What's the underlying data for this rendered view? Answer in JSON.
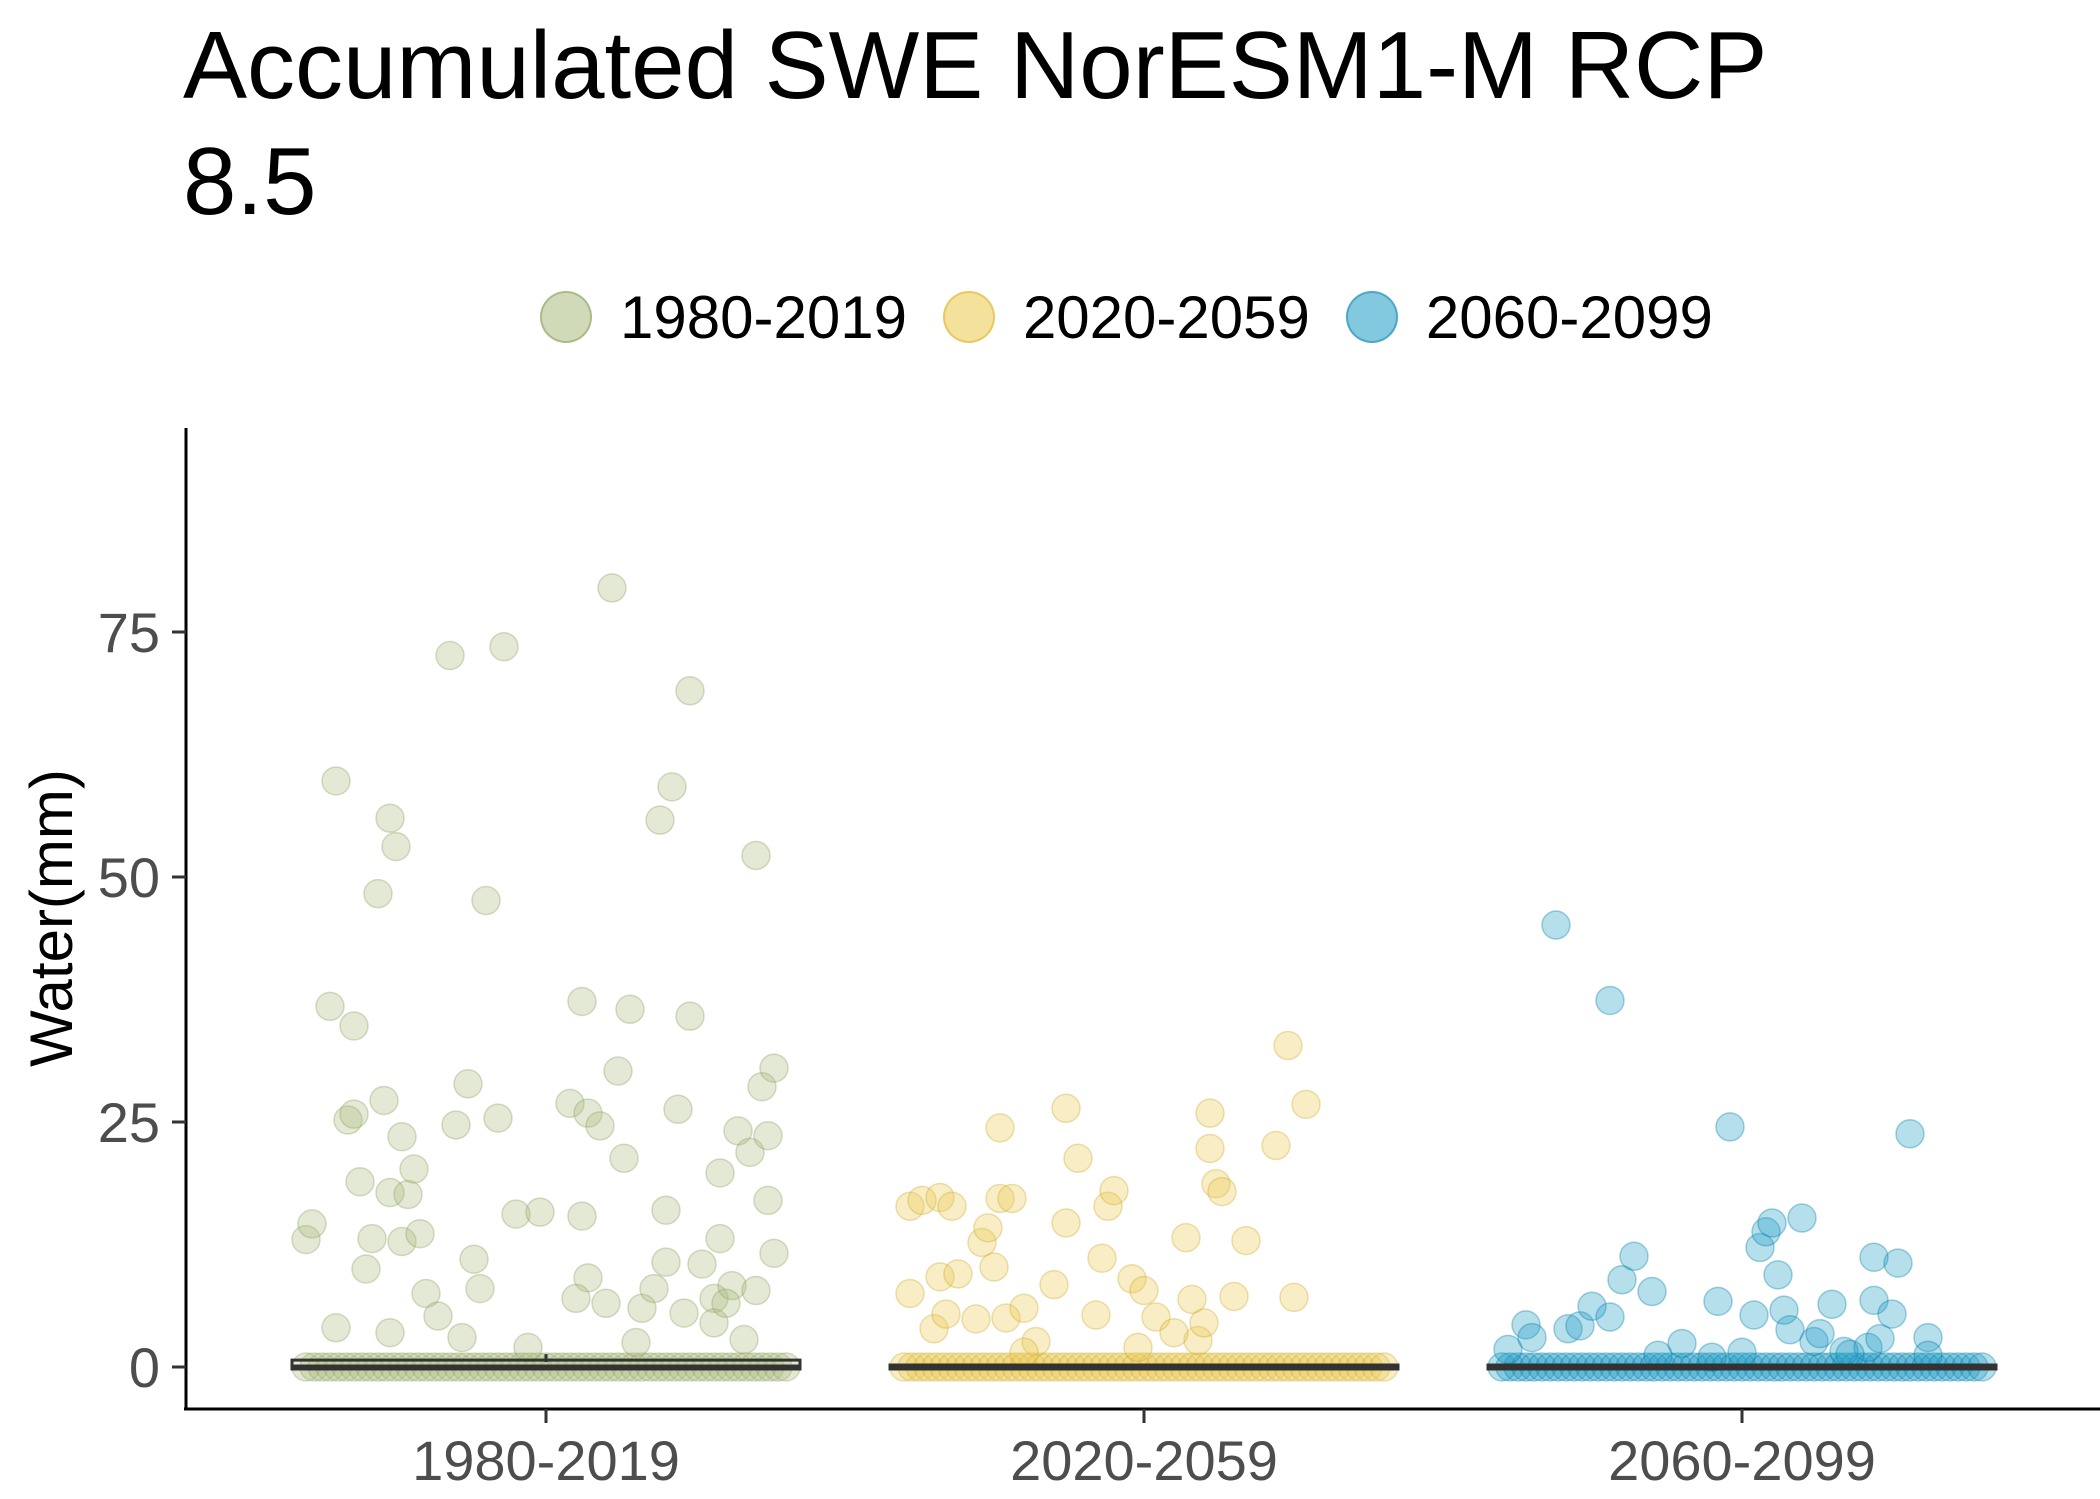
{
  "chart_data": {
    "type": "scatter",
    "title": "Accumulated SWE NorESM1-M RCP\n8.5",
    "xlabel": "",
    "ylabel": "Water(mm)",
    "categories": [
      "1980-2019",
      "2020-2059",
      "2060-2099"
    ],
    "yticks": [
      0,
      25,
      50,
      75
    ],
    "ylim": [
      -4.5,
      95
    ],
    "legend_position": "top",
    "grid": false,
    "boxplot_overlay": true,
    "series": [
      {
        "name": "1980-2019",
        "color": "#a9bb7d",
        "median": 0,
        "q1": 0,
        "q3": 0.5,
        "points": [
          {
            "x": -0.4,
            "y": 13.0
          },
          {
            "x": -0.39,
            "y": 14.6
          },
          {
            "x": -0.36,
            "y": 36.8
          },
          {
            "x": -0.35,
            "y": 59.8
          },
          {
            "x": -0.33,
            "y": 25.2
          },
          {
            "x": -0.32,
            "y": 34.8
          },
          {
            "x": -0.32,
            "y": 25.8
          },
          {
            "x": -0.31,
            "y": 18.9
          },
          {
            "x": -0.3,
            "y": 10.0
          },
          {
            "x": -0.29,
            "y": 13.1
          },
          {
            "x": -0.28,
            "y": 48.3
          },
          {
            "x": -0.27,
            "y": 27.2
          },
          {
            "x": -0.26,
            "y": 17.8
          },
          {
            "x": -0.26,
            "y": 56.0
          },
          {
            "x": -0.25,
            "y": 53.1
          },
          {
            "x": -0.24,
            "y": 23.5
          },
          {
            "x": -0.24,
            "y": 12.8
          },
          {
            "x": -0.23,
            "y": 17.6
          },
          {
            "x": -0.22,
            "y": 20.2
          },
          {
            "x": -0.21,
            "y": 13.6
          },
          {
            "x": -0.2,
            "y": 7.5
          },
          {
            "x": -0.18,
            "y": 5.2
          },
          {
            "x": -0.16,
            "y": 72.6
          },
          {
            "x": -0.15,
            "y": 24.7
          },
          {
            "x": -0.13,
            "y": 28.9
          },
          {
            "x": -0.12,
            "y": 11.0
          },
          {
            "x": -0.11,
            "y": 8.0
          },
          {
            "x": -0.1,
            "y": 47.6
          },
          {
            "x": -0.08,
            "y": 25.4
          },
          {
            "x": -0.07,
            "y": 73.5
          },
          {
            "x": -0.05,
            "y": 15.6
          },
          {
            "x": -0.01,
            "y": 15.8
          },
          {
            "x": 0.04,
            "y": 26.9
          },
          {
            "x": 0.06,
            "y": 15.4
          },
          {
            "x": 0.06,
            "y": 37.3
          },
          {
            "x": 0.07,
            "y": 25.9
          },
          {
            "x": 0.07,
            "y": 9.1
          },
          {
            "x": 0.09,
            "y": 24.6
          },
          {
            "x": 0.1,
            "y": 6.5
          },
          {
            "x": 0.11,
            "y": 79.5
          },
          {
            "x": 0.12,
            "y": 30.2
          },
          {
            "x": 0.13,
            "y": 21.3
          },
          {
            "x": 0.14,
            "y": 36.5
          },
          {
            "x": 0.16,
            "y": 6.0
          },
          {
            "x": 0.18,
            "y": 8.0
          },
          {
            "x": 0.19,
            "y": 55.8
          },
          {
            "x": 0.2,
            "y": 10.7
          },
          {
            "x": 0.2,
            "y": 16.0
          },
          {
            "x": 0.21,
            "y": 59.2
          },
          {
            "x": 0.22,
            "y": 26.3
          },
          {
            "x": 0.24,
            "y": 35.8
          },
          {
            "x": 0.24,
            "y": 69.0
          },
          {
            "x": 0.26,
            "y": 10.5
          },
          {
            "x": 0.28,
            "y": 7.0
          },
          {
            "x": 0.28,
            "y": 4.5
          },
          {
            "x": 0.29,
            "y": 13.1
          },
          {
            "x": 0.29,
            "y": 19.8
          },
          {
            "x": 0.31,
            "y": 8.3
          },
          {
            "x": 0.32,
            "y": 24.1
          },
          {
            "x": 0.33,
            "y": 2.8
          },
          {
            "x": 0.34,
            "y": 21.9
          },
          {
            "x": 0.35,
            "y": 7.8
          },
          {
            "x": 0.35,
            "y": 52.2
          },
          {
            "x": 0.36,
            "y": 28.6
          },
          {
            "x": 0.37,
            "y": 17.0
          },
          {
            "x": 0.37,
            "y": 23.6
          },
          {
            "x": 0.38,
            "y": 11.6
          },
          {
            "x": 0.38,
            "y": 30.5
          },
          {
            "x": -0.35,
            "y": 4.0
          },
          {
            "x": -0.26,
            "y": 3.5
          },
          {
            "x": -0.14,
            "y": 3.0
          },
          {
            "x": -0.03,
            "y": 2.0
          },
          {
            "x": 0.05,
            "y": 7.0
          },
          {
            "x": 0.15,
            "y": 2.5
          },
          {
            "x": 0.23,
            "y": 5.5
          },
          {
            "x": 0.3,
            "y": 6.5
          }
        ]
      },
      {
        "name": "2020-2059",
        "color": "#e9c84a",
        "median": 0,
        "q1": 0,
        "q3": 0,
        "points": [
          {
            "x": -0.39,
            "y": 16.4
          },
          {
            "x": -0.39,
            "y": 7.5
          },
          {
            "x": -0.37,
            "y": 17.0
          },
          {
            "x": -0.35,
            "y": 3.9
          },
          {
            "x": -0.34,
            "y": 9.2
          },
          {
            "x": -0.34,
            "y": 17.3
          },
          {
            "x": -0.33,
            "y": 5.4
          },
          {
            "x": -0.32,
            "y": 16.4
          },
          {
            "x": -0.31,
            "y": 9.5
          },
          {
            "x": -0.28,
            "y": 4.9
          },
          {
            "x": -0.27,
            "y": 12.7
          },
          {
            "x": -0.26,
            "y": 14.2
          },
          {
            "x": -0.25,
            "y": 10.2
          },
          {
            "x": -0.24,
            "y": 24.4
          },
          {
            "x": -0.24,
            "y": 17.2
          },
          {
            "x": -0.23,
            "y": 5.0
          },
          {
            "x": -0.22,
            "y": 17.2
          },
          {
            "x": -0.2,
            "y": 6.0
          },
          {
            "x": -0.18,
            "y": 2.6
          },
          {
            "x": -0.15,
            "y": 8.4
          },
          {
            "x": -0.13,
            "y": 26.4
          },
          {
            "x": -0.13,
            "y": 14.7
          },
          {
            "x": -0.11,
            "y": 21.3
          },
          {
            "x": -0.08,
            "y": 5.3
          },
          {
            "x": -0.07,
            "y": 11.1
          },
          {
            "x": -0.06,
            "y": 16.4
          },
          {
            "x": -0.05,
            "y": 18.0
          },
          {
            "x": -0.02,
            "y": 9.0
          },
          {
            "x": 0.0,
            "y": 7.8
          },
          {
            "x": 0.02,
            "y": 5.1
          },
          {
            "x": 0.07,
            "y": 13.2
          },
          {
            "x": 0.08,
            "y": 6.9
          },
          {
            "x": 0.09,
            "y": 2.7
          },
          {
            "x": 0.1,
            "y": 4.5
          },
          {
            "x": 0.11,
            "y": 22.3
          },
          {
            "x": 0.11,
            "y": 25.9
          },
          {
            "x": 0.12,
            "y": 18.7
          },
          {
            "x": 0.13,
            "y": 17.9
          },
          {
            "x": 0.15,
            "y": 7.2
          },
          {
            "x": 0.17,
            "y": 12.9
          },
          {
            "x": 0.22,
            "y": 22.6
          },
          {
            "x": 0.24,
            "y": 32.8
          },
          {
            "x": 0.25,
            "y": 7.1
          },
          {
            "x": 0.27,
            "y": 26.8
          },
          {
            "x": -0.01,
            "y": 2.0
          },
          {
            "x": 0.05,
            "y": 3.5
          },
          {
            "x": -0.2,
            "y": 1.5
          }
        ]
      },
      {
        "name": "2060-2099",
        "color": "#1b9ac5",
        "median": 0,
        "q1": 0,
        "q3": 0,
        "points": [
          {
            "x": -0.39,
            "y": 1.8
          },
          {
            "x": -0.36,
            "y": 4.3
          },
          {
            "x": -0.35,
            "y": 3.0
          },
          {
            "x": -0.31,
            "y": 45.1
          },
          {
            "x": -0.29,
            "y": 3.9
          },
          {
            "x": -0.27,
            "y": 4.2
          },
          {
            "x": -0.25,
            "y": 6.2
          },
          {
            "x": -0.22,
            "y": 37.4
          },
          {
            "x": -0.22,
            "y": 5.1
          },
          {
            "x": -0.2,
            "y": 8.9
          },
          {
            "x": -0.18,
            "y": 11.3
          },
          {
            "x": -0.15,
            "y": 7.7
          },
          {
            "x": -0.14,
            "y": 1.2
          },
          {
            "x": -0.1,
            "y": 2.4
          },
          {
            "x": -0.04,
            "y": 6.7
          },
          {
            "x": -0.02,
            "y": 24.5
          },
          {
            "x": 0.0,
            "y": 1.5
          },
          {
            "x": 0.02,
            "y": 5.3
          },
          {
            "x": 0.03,
            "y": 12.2
          },
          {
            "x": 0.04,
            "y": 13.8
          },
          {
            "x": 0.05,
            "y": 14.7
          },
          {
            "x": 0.06,
            "y": 9.4
          },
          {
            "x": 0.07,
            "y": 5.8
          },
          {
            "x": 0.08,
            "y": 3.8
          },
          {
            "x": 0.1,
            "y": 15.2
          },
          {
            "x": 0.12,
            "y": 2.6
          },
          {
            "x": 0.13,
            "y": 3.4
          },
          {
            "x": 0.15,
            "y": 6.4
          },
          {
            "x": 0.17,
            "y": 1.6
          },
          {
            "x": 0.21,
            "y": 2.0
          },
          {
            "x": 0.22,
            "y": 11.2
          },
          {
            "x": 0.22,
            "y": 6.8
          },
          {
            "x": 0.23,
            "y": 2.9
          },
          {
            "x": 0.25,
            "y": 5.4
          },
          {
            "x": 0.26,
            "y": 10.6
          },
          {
            "x": 0.28,
            "y": 23.8
          },
          {
            "x": 0.31,
            "y": 3.0
          },
          {
            "x": 0.31,
            "y": 1.2
          },
          {
            "x": -0.05,
            "y": 1.0
          },
          {
            "x": 0.18,
            "y": 1.3
          }
        ]
      }
    ]
  }
}
